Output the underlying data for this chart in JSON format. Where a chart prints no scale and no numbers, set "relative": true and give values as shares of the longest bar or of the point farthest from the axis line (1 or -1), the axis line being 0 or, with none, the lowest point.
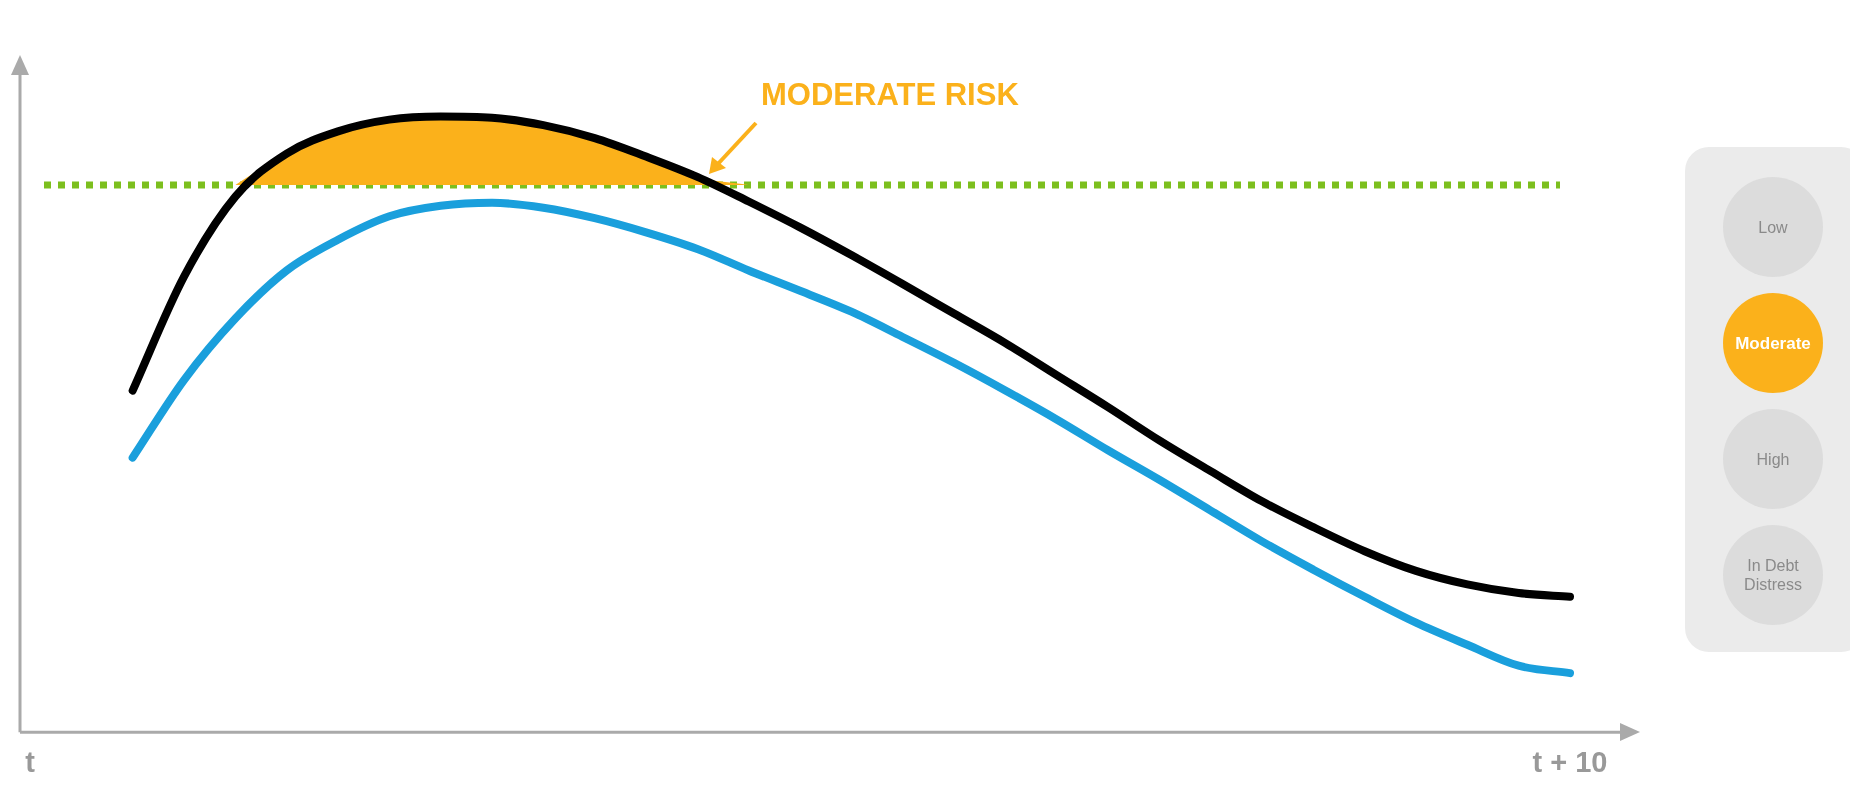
{
  "chart_data": [
    {
      "type": "line",
      "relative": true,
      "categories": [
        "t",
        null,
        null,
        null,
        null,
        null,
        null,
        null,
        null,
        null,
        null,
        null,
        null,
        null,
        null,
        null,
        null,
        null,
        null,
        null,
        null,
        null,
        null,
        null,
        null,
        null,
        null,
        null,
        null,
        null,
        "t + 10"
      ],
      "series": [
        {
          "type": "area",
          "color": "#fbb11b",
          "values": [
            null,
            null,
            null,
            null,
            0.889,
            0.94,
            0.976,
            0.995,
            1.0,
            0.998,
            0.986,
            0.965,
            0.935,
            0.902,
            0.889,
            null,
            null,
            null,
            null,
            null,
            null,
            null,
            null,
            null,
            null,
            null,
            null,
            null,
            null,
            null,
            null
          ]
        },
        {
          "color": "#000000",
          "values": [
            null,
            null,
            0.555,
            0.74,
            0.87,
            0.94,
            0.976,
            0.995,
            1.0,
            0.998,
            0.986,
            0.965,
            0.935,
            0.902,
            0.862,
            0.82,
            0.775,
            0.728,
            0.68,
            0.632,
            0.58,
            0.528,
            0.474,
            0.424,
            0.375,
            0.333,
            0.294,
            0.262,
            0.24,
            0.226,
            0.22
          ]
        },
        {
          "color": "#1a9fdc",
          "values": [
            null,
            null,
            0.446,
            0.572,
            0.672,
            0.75,
            0.8,
            0.838,
            0.855,
            0.86,
            0.852,
            0.835,
            0.812,
            0.785,
            0.75,
            0.717,
            0.683,
            0.642,
            0.6,
            0.555,
            0.508,
            0.458,
            0.41,
            0.36,
            0.31,
            0.264,
            0.22,
            0.178,
            0.142,
            0.108,
            0.096
          ]
        }
      ],
      "ref_lines": [
        {
          "axis": "y",
          "value": 0.889,
          "color": "#7cbf1e",
          "line_style": "dotted"
        }
      ],
      "annotations": [
        "MODERATE RISK"
      ],
      "legend": false
    },
    {
      "type": "other",
      "categories": [
        "Low",
        "Moderate",
        "High",
        "In Debt Distress"
      ],
      "colors": [
        "#dcdcdc",
        "#fbb11b",
        "#dcdcdc",
        "#dcdcdc"
      ]
    }
  ]
}
